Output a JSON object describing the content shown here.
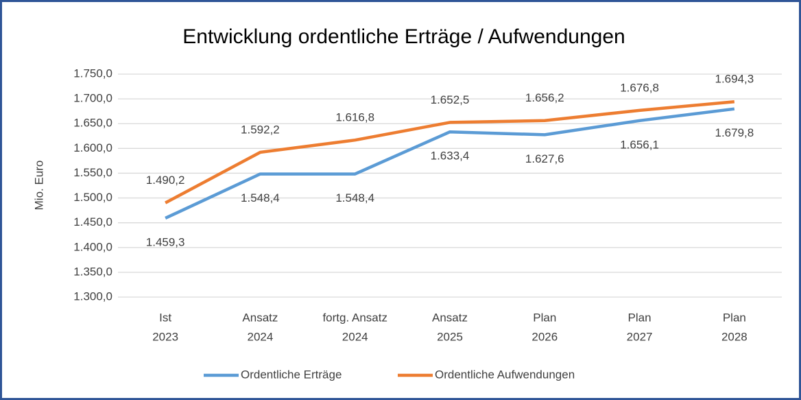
{
  "chart_data": {
    "type": "line",
    "title": "Entwicklung ordentliche Erträge / Aufwendungen",
    "y_label": "Mio. Euro",
    "categories": [
      [
        "Ist",
        "2023"
      ],
      [
        "Ansatz",
        "2024"
      ],
      [
        "fortg. Ansatz",
        "2024"
      ],
      [
        "Ansatz",
        "2025"
      ],
      [
        "Plan",
        "2026"
      ],
      [
        "Plan",
        "2027"
      ],
      [
        "Plan",
        "2028"
      ]
    ],
    "series": [
      {
        "name": "Ordentliche Erträge",
        "color": "#5b9bd5",
        "values": [
          1459.3,
          1548.4,
          1548.4,
          1633.4,
          1627.6,
          1656.1,
          1679.8
        ],
        "value_labels": [
          "1.459,3",
          "1.548,4",
          "1.548,4",
          "1.633,4",
          "1.627,6",
          "1.656,1",
          "1.679,8"
        ]
      },
      {
        "name": "Ordentliche Aufwendungen",
        "color": "#ed7d31",
        "values": [
          1490.2,
          1592.2,
          1616.8,
          1652.5,
          1656.2,
          1676.8,
          1694.3
        ],
        "value_labels": [
          "1.490,2",
          "1.592,2",
          "1.616,8",
          "1.652,5",
          "1.656,2",
          "1.676,8",
          "1.694,3"
        ]
      }
    ],
    "ylim": [
      1300,
      1750
    ],
    "yticks": [
      {
        "value": 1300,
        "label": "1.300,0"
      },
      {
        "value": 1350,
        "label": "1.350,0"
      },
      {
        "value": 1400,
        "label": "1.400,0"
      },
      {
        "value": 1450,
        "label": "1.450,0"
      },
      {
        "value": 1500,
        "label": "1.500,0"
      },
      {
        "value": 1550,
        "label": "1.550,0"
      },
      {
        "value": 1600,
        "label": "1.600,0"
      },
      {
        "value": 1650,
        "label": "1.650,0"
      },
      {
        "value": 1700,
        "label": "1.700,0"
      },
      {
        "value": 1750,
        "label": "1.750,0"
      }
    ],
    "grid": true,
    "legend": "bottom"
  }
}
